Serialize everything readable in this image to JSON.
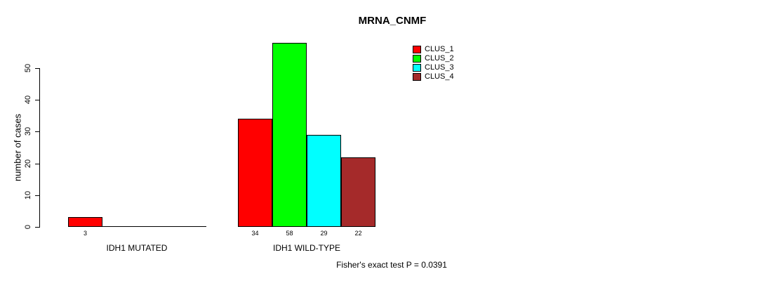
{
  "figure": {
    "background": "#ffffff",
    "text_color": "#000000"
  },
  "chart_data": {
    "type": "bar",
    "title": "MRNA_CNMF",
    "xlabel": "",
    "ylabel": "number of cases",
    "categories": [
      "IDH1 MUTATED",
      "IDH1 WILD-TYPE"
    ],
    "series": [
      {
        "name": "CLUS_1",
        "color": "#ff0000",
        "values": [
          3,
          34
        ]
      },
      {
        "name": "CLUS_2",
        "color": "#00ff00",
        "values": [
          0,
          58
        ]
      },
      {
        "name": "CLUS_3",
        "color": "#00ffff",
        "values": [
          0,
          29
        ]
      },
      {
        "name": "CLUS_4",
        "color": "#a52a2a",
        "values": [
          0,
          22
        ]
      }
    ],
    "yticks": [
      0,
      10,
      20,
      30,
      40,
      50
    ],
    "ylim": [
      0,
      58
    ],
    "grid": false,
    "legend_position": "top-right",
    "bar_borders": "#000000",
    "value_labels_shown_for_nonzero_bars": true,
    "annotation": "Fisher's exact test P = 0.0391"
  }
}
